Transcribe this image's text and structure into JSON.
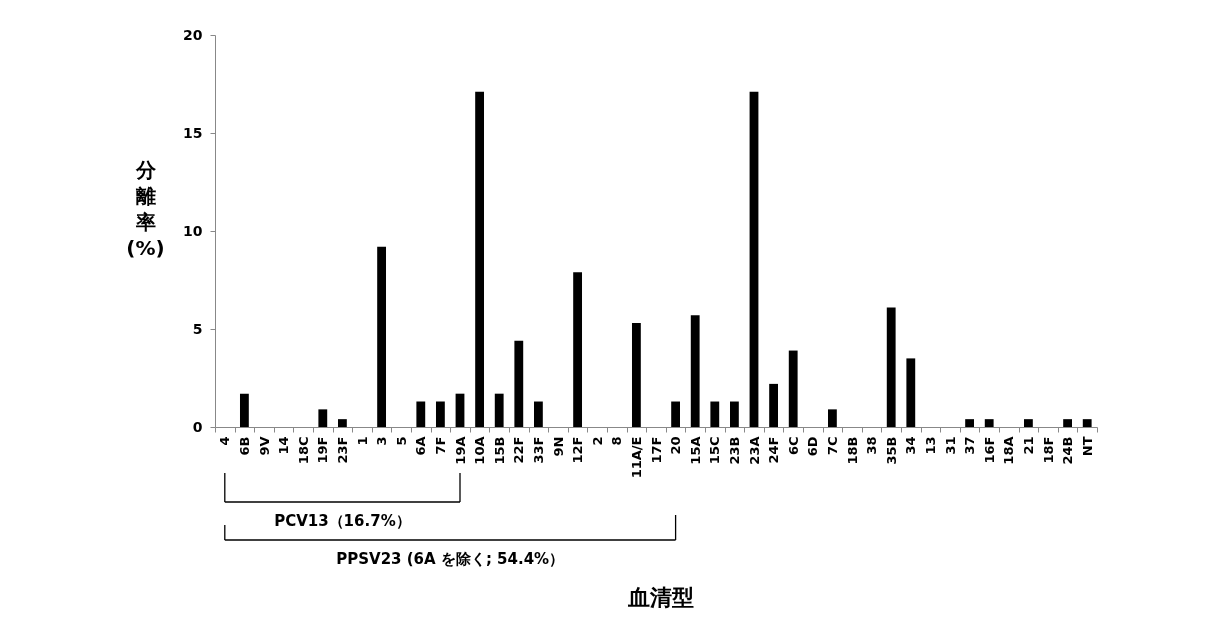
{
  "chart_data": {
    "type": "bar",
    "xlabel": "血清型",
    "ylabel": "分離率(%)",
    "categories": [
      "4",
      "6B",
      "9V",
      "14",
      "18C",
      "19F",
      "23F",
      "1",
      "3",
      "5",
      "6A",
      "7F",
      "19A",
      "10A",
      "15B",
      "22F",
      "33F",
      "9N",
      "12F",
      "2",
      "8",
      "11A/E",
      "17F",
      "20",
      "15A",
      "15C",
      "23B",
      "23A",
      "24F",
      "6C",
      "6D",
      "7C",
      "18B",
      "38",
      "35B",
      "34",
      "13",
      "31",
      "37",
      "16F",
      "18A",
      "21",
      "18F",
      "24B",
      "NT"
    ],
    "values": [
      0,
      1.7,
      0,
      0,
      0,
      0.9,
      0.4,
      0,
      9.2,
      0,
      1.3,
      1.3,
      1.7,
      17.1,
      1.7,
      4.4,
      1.3,
      0,
      7.9,
      0,
      0,
      5.3,
      0,
      1.3,
      5.7,
      1.3,
      1.3,
      17.1,
      2.2,
      3.9,
      0,
      0.9,
      0,
      0,
      6.1,
      3.5,
      0,
      0,
      0.4,
      0.4,
      0,
      0.4,
      0,
      0.4,
      0.4
    ],
    "color": "#000000",
    "ylim": [
      0,
      20
    ],
    "yticks": [
      0,
      5,
      10,
      15,
      20
    ],
    "annotations": [
      "PCV13（16.7%）",
      "PPSV23 (6A を除く; 54.4%）"
    ]
  }
}
